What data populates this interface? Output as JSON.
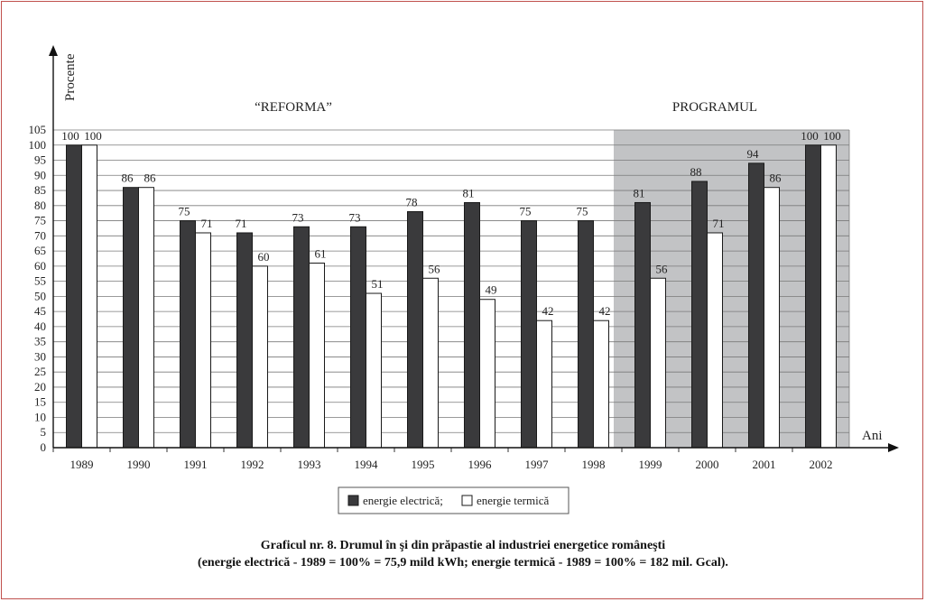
{
  "chart_data": {
    "type": "bar",
    "ylabel": "Procente",
    "xlabel": "Ani",
    "categories": [
      "1989",
      "1990",
      "1991",
      "1992",
      "1993",
      "1994",
      "1995",
      "1996",
      "1997",
      "1998",
      "1999",
      "2000",
      "2001",
      "2002"
    ],
    "yticks": [
      0,
      5,
      10,
      15,
      20,
      25,
      30,
      35,
      40,
      45,
      50,
      55,
      60,
      65,
      70,
      75,
      80,
      85,
      90,
      95,
      100,
      105
    ],
    "ylim": [
      0,
      105
    ],
    "series": [
      {
        "name": "energie electrică;",
        "color": "#3a3a3c",
        "values": [
          100,
          86,
          75,
          71,
          73,
          73,
          78,
          81,
          75,
          75,
          81,
          88,
          94,
          100
        ]
      },
      {
        "name": "energie termică",
        "color": "#ffffff",
        "values": [
          100,
          86,
          71,
          60,
          61,
          51,
          56,
          49,
          42,
          42,
          56,
          71,
          86,
          100
        ]
      }
    ],
    "regions": [
      {
        "label": "“REFORMA”",
        "from": "1989",
        "to": "1998"
      },
      {
        "label": "PROGRAMUL",
        "from": "1999",
        "to": "2002",
        "shade": "#c2c3c5"
      }
    ],
    "grid": true,
    "legend_position": "bottom-center"
  },
  "caption": {
    "line1": "Graficul nr. 8. Drumul în şi din prăpastie al industriei energetice româneşti",
    "line2": "(energie electrică - 1989 = 100% = 75,9 mild kWh; energie termică - 1989 = 100% = 182 mil. Gcal)."
  }
}
